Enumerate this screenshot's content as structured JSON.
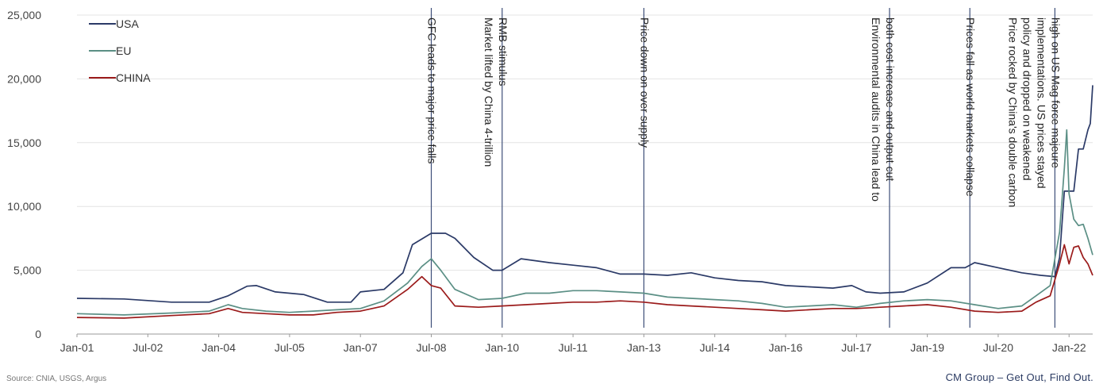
{
  "chart_data": {
    "type": "line",
    "ylim": [
      0,
      25000
    ],
    "yticks": [
      0,
      5000,
      10000,
      15000,
      20000,
      25000
    ],
    "ytick_labels": [
      "0",
      "5,000",
      "10,000",
      "15,000",
      "20,000",
      "25,000"
    ],
    "xlim": [
      2001.0,
      2022.5
    ],
    "xticks": [
      2001.0,
      2002.5,
      2004.0,
      2005.5,
      2007.0,
      2008.5,
      2010.0,
      2011.5,
      2013.0,
      2014.5,
      2016.0,
      2017.5,
      2019.0,
      2020.5,
      2022.0
    ],
    "xtick_labels": [
      "Jan-01",
      "Jul-02",
      "Jan-04",
      "Jul-05",
      "Jan-07",
      "Jul-08",
      "Jan-10",
      "Jul-11",
      "Jan-13",
      "Jul-14",
      "Jan-16",
      "Jul-17",
      "Jan-19",
      "Jul-20",
      "Jan-22"
    ],
    "grid": "horizontal",
    "legend_position": "top-left",
    "series": [
      {
        "name": "USA",
        "color": "#2b3a67",
        "points": [
          [
            2001.0,
            2800
          ],
          [
            2002.0,
            2750
          ],
          [
            2003.0,
            2500
          ],
          [
            2003.8,
            2500
          ],
          [
            2004.2,
            3000
          ],
          [
            2004.6,
            3750
          ],
          [
            2004.8,
            3800
          ],
          [
            2005.2,
            3300
          ],
          [
            2005.8,
            3100
          ],
          [
            2006.3,
            2500
          ],
          [
            2006.8,
            2500
          ],
          [
            2007.0,
            3300
          ],
          [
            2007.5,
            3500
          ],
          [
            2007.9,
            4800
          ],
          [
            2008.1,
            7000
          ],
          [
            2008.5,
            7900
          ],
          [
            2008.8,
            7900
          ],
          [
            2009.0,
            7500
          ],
          [
            2009.4,
            6000
          ],
          [
            2009.8,
            5000
          ],
          [
            2010.0,
            5000
          ],
          [
            2010.4,
            5900
          ],
          [
            2011.0,
            5600
          ],
          [
            2011.5,
            5400
          ],
          [
            2012.0,
            5200
          ],
          [
            2012.5,
            4700
          ],
          [
            2013.0,
            4700
          ],
          [
            2013.5,
            4600
          ],
          [
            2014.0,
            4800
          ],
          [
            2014.5,
            4400
          ],
          [
            2015.0,
            4200
          ],
          [
            2015.5,
            4100
          ],
          [
            2016.0,
            3800
          ],
          [
            2016.5,
            3700
          ],
          [
            2017.0,
            3600
          ],
          [
            2017.2,
            3700
          ],
          [
            2017.4,
            3800
          ],
          [
            2017.7,
            3300
          ],
          [
            2018.0,
            3200
          ],
          [
            2018.5,
            3300
          ],
          [
            2019.0,
            4000
          ],
          [
            2019.5,
            5200
          ],
          [
            2019.8,
            5200
          ],
          [
            2020.0,
            5600
          ],
          [
            2020.5,
            5200
          ],
          [
            2021.0,
            4800
          ],
          [
            2021.4,
            4600
          ],
          [
            2021.7,
            4500
          ],
          [
            2021.8,
            6000
          ],
          [
            2021.9,
            11200
          ],
          [
            2022.1,
            11200
          ],
          [
            2022.2,
            14500
          ],
          [
            2022.3,
            14500
          ],
          [
            2022.4,
            16000
          ],
          [
            2022.45,
            16500
          ],
          [
            2022.5,
            19500
          ]
        ]
      },
      {
        "name": "EU",
        "color": "#5b8f85",
        "points": [
          [
            2001.0,
            1600
          ],
          [
            2002.0,
            1500
          ],
          [
            2003.0,
            1650
          ],
          [
            2003.8,
            1800
          ],
          [
            2004.2,
            2300
          ],
          [
            2004.5,
            2000
          ],
          [
            2005.0,
            1800
          ],
          [
            2005.5,
            1700
          ],
          [
            2006.0,
            1800
          ],
          [
            2006.5,
            1900
          ],
          [
            2007.0,
            2000
          ],
          [
            2007.5,
            2600
          ],
          [
            2008.0,
            4000
          ],
          [
            2008.3,
            5300
          ],
          [
            2008.5,
            5900
          ],
          [
            2008.7,
            5000
          ],
          [
            2009.0,
            3500
          ],
          [
            2009.5,
            2700
          ],
          [
            2010.0,
            2800
          ],
          [
            2010.5,
            3200
          ],
          [
            2011.0,
            3200
          ],
          [
            2011.5,
            3400
          ],
          [
            2012.0,
            3400
          ],
          [
            2012.5,
            3300
          ],
          [
            2013.0,
            3200
          ],
          [
            2013.5,
            2900
          ],
          [
            2014.0,
            2800
          ],
          [
            2014.5,
            2700
          ],
          [
            2015.0,
            2600
          ],
          [
            2015.5,
            2400
          ],
          [
            2016.0,
            2100
          ],
          [
            2016.5,
            2200
          ],
          [
            2017.0,
            2300
          ],
          [
            2017.5,
            2100
          ],
          [
            2018.0,
            2400
          ],
          [
            2018.5,
            2600
          ],
          [
            2019.0,
            2700
          ],
          [
            2019.5,
            2600
          ],
          [
            2020.0,
            2300
          ],
          [
            2020.5,
            2000
          ],
          [
            2021.0,
            2200
          ],
          [
            2021.3,
            3000
          ],
          [
            2021.6,
            3800
          ],
          [
            2021.8,
            8000
          ],
          [
            2021.9,
            13000
          ],
          [
            2021.95,
            16000
          ],
          [
            2022.0,
            11000
          ],
          [
            2022.1,
            9000
          ],
          [
            2022.2,
            8500
          ],
          [
            2022.3,
            8600
          ],
          [
            2022.4,
            7500
          ],
          [
            2022.5,
            6200
          ]
        ]
      },
      {
        "name": "CHINA",
        "color": "#9b1b1b",
        "points": [
          [
            2001.0,
            1300
          ],
          [
            2002.0,
            1250
          ],
          [
            2003.0,
            1450
          ],
          [
            2003.8,
            1600
          ],
          [
            2004.2,
            2000
          ],
          [
            2004.5,
            1700
          ],
          [
            2005.0,
            1600
          ],
          [
            2005.5,
            1500
          ],
          [
            2006.0,
            1500
          ],
          [
            2006.5,
            1700
          ],
          [
            2007.0,
            1800
          ],
          [
            2007.5,
            2200
          ],
          [
            2008.0,
            3500
          ],
          [
            2008.3,
            4500
          ],
          [
            2008.5,
            3800
          ],
          [
            2008.7,
            3600
          ],
          [
            2009.0,
            2200
          ],
          [
            2009.5,
            2100
          ],
          [
            2010.0,
            2200
          ],
          [
            2010.5,
            2300
          ],
          [
            2011.0,
            2400
          ],
          [
            2011.5,
            2500
          ],
          [
            2012.0,
            2500
          ],
          [
            2012.5,
            2600
          ],
          [
            2013.0,
            2500
          ],
          [
            2013.5,
            2300
          ],
          [
            2014.0,
            2200
          ],
          [
            2014.5,
            2100
          ],
          [
            2015.0,
            2000
          ],
          [
            2015.5,
            1900
          ],
          [
            2016.0,
            1800
          ],
          [
            2016.5,
            1900
          ],
          [
            2017.0,
            2000
          ],
          [
            2017.5,
            2000
          ],
          [
            2018.0,
            2100
          ],
          [
            2018.5,
            2200
          ],
          [
            2019.0,
            2300
          ],
          [
            2019.5,
            2100
          ],
          [
            2020.0,
            1800
          ],
          [
            2020.5,
            1700
          ],
          [
            2021.0,
            1800
          ],
          [
            2021.3,
            2500
          ],
          [
            2021.6,
            3000
          ],
          [
            2021.8,
            5500
          ],
          [
            2021.9,
            7000
          ],
          [
            2022.0,
            5500
          ],
          [
            2022.1,
            6800
          ],
          [
            2022.2,
            6900
          ],
          [
            2022.3,
            6000
          ],
          [
            2022.4,
            5500
          ],
          [
            2022.5,
            4600
          ]
        ]
      }
    ],
    "annotations": [
      {
        "x": 2008.5,
        "lines": [
          "GFC leads to major price falls"
        ]
      },
      {
        "x": 2010.0,
        "lines": [
          "Market lifted by China 4-trillion",
          "RMB stimulus"
        ]
      },
      {
        "x": 2013.0,
        "lines": [
          "Price down on over supply"
        ]
      },
      {
        "x": 2018.2,
        "lines": [
          "Environmental audits in China lead to",
          "both cost increase and output cut"
        ]
      },
      {
        "x": 2019.9,
        "lines": [
          "Prices fall as world markets collapse"
        ]
      },
      {
        "x": 2021.7,
        "lines": [
          "Price rocked by China's double carbon",
          "policy and dropped on weakened",
          "implementations. US prices stayed",
          "high on US Mag force majeure"
        ]
      }
    ]
  },
  "footer": {
    "source": "Source: CNIA, USGS, Argus",
    "brand": "CM Group – Get Out, Find Out."
  }
}
